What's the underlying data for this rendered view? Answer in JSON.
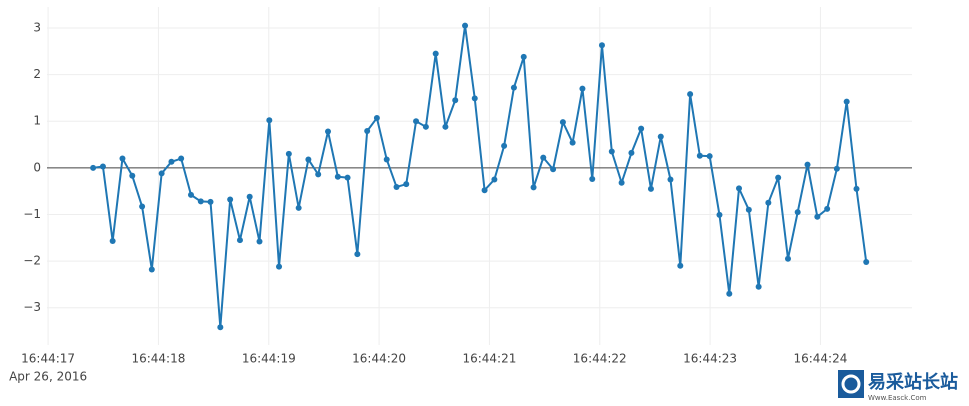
{
  "chart_data": {
    "type": "line",
    "x": [
      "2016-04-26 16:44:17.408",
      "2016-04-26 16:44:17.497",
      "2016-04-26 16:44:17.585",
      "2016-04-26 16:44:17.674",
      "2016-04-26 16:44:17.763",
      "2016-04-26 16:44:17.852",
      "2016-04-26 16:44:17.940",
      "2016-04-26 16:44:18.029",
      "2016-04-26 16:44:18.118",
      "2016-04-26 16:44:18.206",
      "2016-04-26 16:44:18.295",
      "2016-04-26 16:44:18.384",
      "2016-04-26 16:44:18.472",
      "2016-04-26 16:44:18.561",
      "2016-04-26 16:44:18.650",
      "2016-04-26 16:44:18.739",
      "2016-04-26 16:44:18.827",
      "2016-04-26 16:44:18.916",
      "2016-04-26 16:44:19.005",
      "2016-04-26 16:44:19.093",
      "2016-04-26 16:44:19.182",
      "2016-04-26 16:44:19.271",
      "2016-04-26 16:44:19.359",
      "2016-04-26 16:44:19.448",
      "2016-04-26 16:44:19.537",
      "2016-04-26 16:44:19.626",
      "2016-04-26 16:44:19.714",
      "2016-04-26 16:44:19.803",
      "2016-04-26 16:44:19.892",
      "2016-04-26 16:44:19.980",
      "2016-04-26 16:44:20.069",
      "2016-04-26 16:44:20.158",
      "2016-04-26 16:44:20.246",
      "2016-04-26 16:44:20.335",
      "2016-04-26 16:44:20.424",
      "2016-04-26 16:44:20.513",
      "2016-04-26 16:44:20.601",
      "2016-04-26 16:44:20.690",
      "2016-04-26 16:44:20.779",
      "2016-04-26 16:44:20.867",
      "2016-04-26 16:44:20.956",
      "2016-04-26 16:44:21.045",
      "2016-04-26 16:44:21.133",
      "2016-04-26 16:44:21.222",
      "2016-04-26 16:44:21.311",
      "2016-04-26 16:44:21.400",
      "2016-04-26 16:44:21.488",
      "2016-04-26 16:44:21.577",
      "2016-04-26 16:44:21.666",
      "2016-04-26 16:44:21.754",
      "2016-04-26 16:44:21.843",
      "2016-04-26 16:44:21.932",
      "2016-04-26 16:44:22.020",
      "2016-04-26 16:44:22.109",
      "2016-04-26 16:44:22.198",
      "2016-04-26 16:44:22.287",
      "2016-04-26 16:44:22.375",
      "2016-04-26 16:44:22.464",
      "2016-04-26 16:44:22.553",
      "2016-04-26 16:44:22.641",
      "2016-04-26 16:44:22.730",
      "2016-04-26 16:44:22.819",
      "2016-04-26 16:44:22.907",
      "2016-04-26 16:44:22.996",
      "2016-04-26 16:44:23.085",
      "2016-04-26 16:44:23.174",
      "2016-04-26 16:44:23.262",
      "2016-04-26 16:44:23.351",
      "2016-04-26 16:44:23.440",
      "2016-04-26 16:44:23.528",
      "2016-04-26 16:44:23.617",
      "2016-04-26 16:44:23.706",
      "2016-04-26 16:44:23.794",
      "2016-04-26 16:44:23.883",
      "2016-04-26 16:44:23.972",
      "2016-04-26 16:44:24.061",
      "2016-04-26 16:44:24.149",
      "2016-04-26 16:44:24.238",
      "2016-04-26 16:44:24.327",
      "2016-04-26 16:44:24.415"
    ],
    "values": [
      0.0,
      0.03,
      -1.57,
      0.2,
      -0.17,
      -0.83,
      -2.18,
      -0.12,
      0.13,
      0.2,
      -0.58,
      -0.72,
      -0.73,
      -3.42,
      -0.68,
      -1.55,
      -0.62,
      -1.58,
      1.02,
      -2.12,
      0.3,
      -0.86,
      0.18,
      -0.14,
      0.78,
      -0.19,
      -0.21,
      -1.85,
      0.79,
      1.07,
      0.18,
      -0.41,
      -0.35,
      1.0,
      0.88,
      2.45,
      0.88,
      1.45,
      3.05,
      1.49,
      -0.48,
      -0.25,
      0.47,
      1.72,
      2.38,
      -0.42,
      0.22,
      -0.03,
      0.98,
      0.54,
      1.7,
      -0.24,
      2.63,
      0.35,
      -0.32,
      0.32,
      0.84,
      -0.45,
      0.67,
      -0.25,
      -2.1,
      1.58,
      0.26,
      0.25,
      -1.01,
      -2.7,
      -0.44,
      -0.9,
      -2.55,
      -0.75,
      -0.21,
      -1.95,
      -0.95,
      0.07,
      -1.05,
      -0.88,
      -0.02,
      1.42,
      -0.45,
      -2.02
    ],
    "color": "#1f77b4",
    "xlim": [
      "2016-04-26 16:44:16.990",
      "2016-04-26 16:44:24.830"
    ],
    "xticks": [
      {
        "value": "2016-04-26 16:44:17",
        "label": "16:44:17"
      },
      {
        "value": "2016-04-26 16:44:18",
        "label": "16:44:18"
      },
      {
        "value": "2016-04-26 16:44:19",
        "label": "16:44:19"
      },
      {
        "value": "2016-04-26 16:44:20",
        "label": "16:44:20"
      },
      {
        "value": "2016-04-26 16:44:21",
        "label": "16:44:21"
      },
      {
        "value": "2016-04-26 16:44:22",
        "label": "16:44:22"
      },
      {
        "value": "2016-04-26 16:44:23",
        "label": "16:44:23"
      },
      {
        "value": "2016-04-26 16:44:24",
        "label": "16:44:24"
      }
    ],
    "x_date_label": "Apr 26, 2016",
    "ylim": [
      -3.8,
      3.45
    ],
    "yticks": [
      -3,
      -2,
      -1,
      0,
      1,
      2,
      3
    ],
    "ytick_labels": [
      "−3",
      "−2",
      "−1",
      "0",
      "1",
      "2",
      "3"
    ],
    "grid": true,
    "zeroline": true
  },
  "watermark": {
    "title": "易采站长站",
    "subtitle": "Www.Easck.Com"
  }
}
